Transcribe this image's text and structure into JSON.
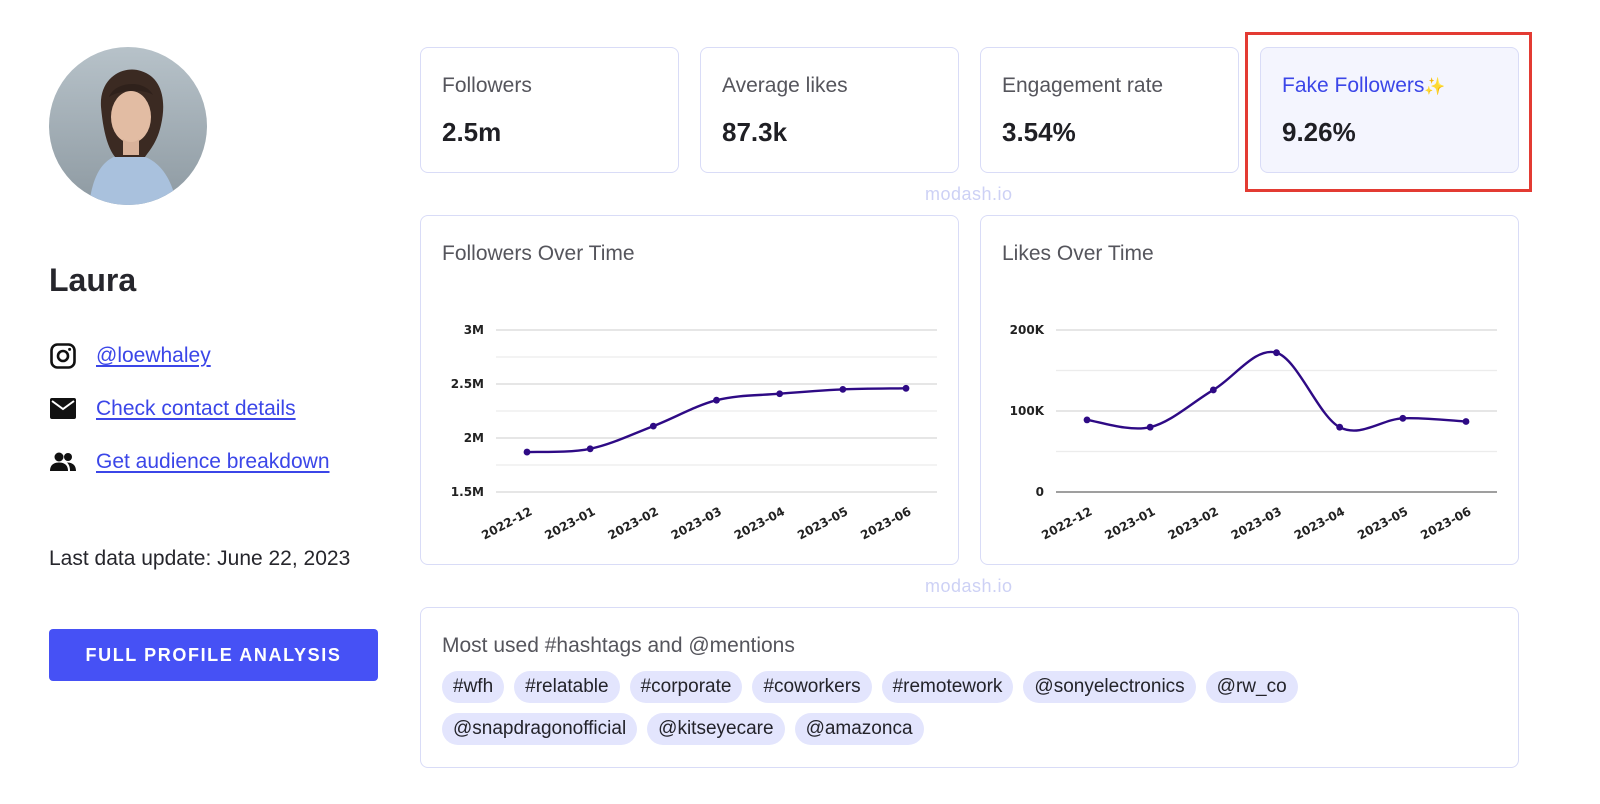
{
  "profile": {
    "name": "Laura",
    "handle": "@loewhaley",
    "contact_link": "Check contact details",
    "audience_link": "Get audience breakdown",
    "last_update": "Last data update: June 22, 2023",
    "cta": "FULL PROFILE ANALYSIS"
  },
  "stats": [
    {
      "label": "Followers",
      "value": "2.5m"
    },
    {
      "label": "Average likes",
      "value": "87.3k"
    },
    {
      "label": "Engagement rate",
      "value": "3.54%"
    },
    {
      "label": "Fake Followers",
      "sparkle": "✨",
      "value": "9.26%"
    }
  ],
  "watermark": "modash.io",
  "colors": {
    "accent": "#4651f5",
    "line": "#2e0a85",
    "highlight_box": "#e33b33",
    "tag_bg": "#e3e5fd"
  },
  "hashtags": {
    "title": "Most used #hashtags and @mentions",
    "items": [
      "#wfh",
      "#relatable",
      "#corporate",
      "#coworkers",
      "#remotework",
      "@sonyelectronics",
      "@rw_co",
      "@snapdragonofficial",
      "@kitseyecare",
      "@amazonca"
    ]
  },
  "chart_data": [
    {
      "type": "line",
      "title": "Followers Over Time",
      "categories": [
        "2022-12",
        "2023-01",
        "2023-02",
        "2023-03",
        "2023-04",
        "2023-05",
        "2023-06"
      ],
      "values": [
        1.87,
        1.9,
        2.11,
        2.35,
        2.41,
        2.45,
        2.46
      ],
      "unit": "M",
      "ylim": [
        1.5,
        3.0
      ],
      "yticks": [
        1.5,
        2,
        2.5,
        3
      ],
      "ytick_labels": [
        "1.5M",
        "2M",
        "2.5M",
        "3M"
      ]
    },
    {
      "type": "line",
      "title": "Likes Over Time",
      "categories": [
        "2022-12",
        "2023-01",
        "2023-02",
        "2023-03",
        "2023-04",
        "2023-05",
        "2023-06"
      ],
      "values": [
        89000,
        80000,
        126000,
        172000,
        80000,
        91000,
        87000
      ],
      "ylim": [
        0,
        200000
      ],
      "yticks": [
        0,
        100000,
        200000
      ],
      "ytick_labels": [
        "0",
        "100K",
        "200K"
      ]
    }
  ]
}
